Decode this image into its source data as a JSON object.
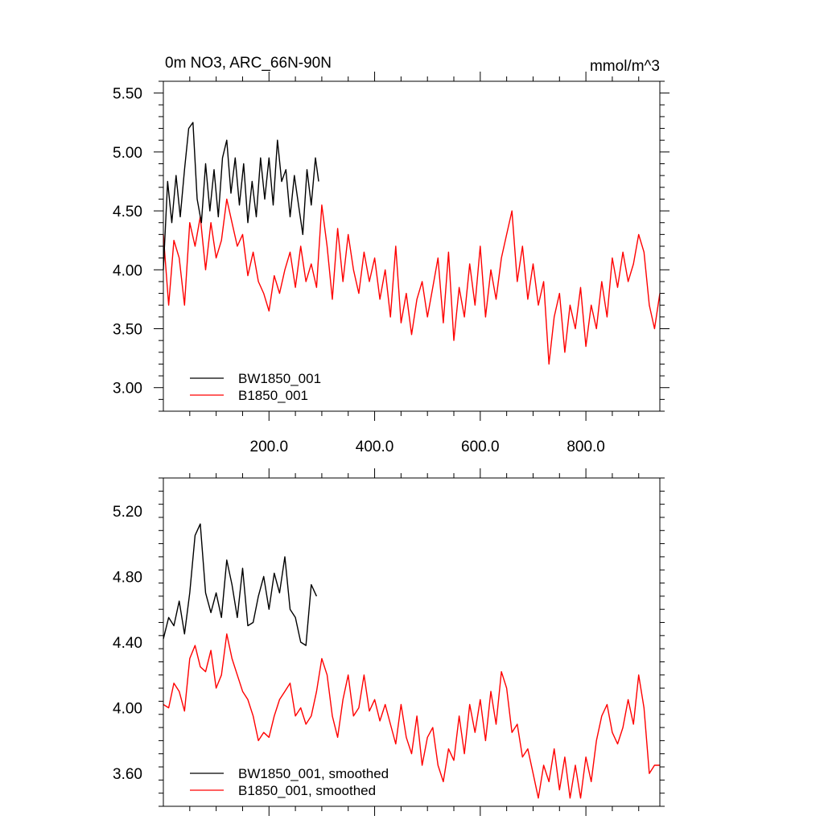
{
  "chart_data": [
    {
      "type": "line",
      "title": "0m NO3, ARC_66N-90N",
      "units": "mmol/m^3",
      "xlim": [
        0,
        940
      ],
      "ylim": [
        2.8,
        5.6
      ],
      "xticks": [
        200,
        400,
        600,
        800
      ],
      "xtick_labels": [
        "200.0",
        "400.0",
        "600.0",
        "800.0"
      ],
      "yticks": [
        3.0,
        3.5,
        4.0,
        4.5,
        5.0,
        5.5
      ],
      "ytick_labels": [
        "3.00",
        "3.50",
        "4.00",
        "4.50",
        "5.00",
        "5.50"
      ],
      "legend_position": "bottom-left",
      "series": [
        {
          "name": "BW1850_001",
          "color": "#000000",
          "x": [
            0,
            8,
            16,
            24,
            32,
            40,
            48,
            56,
            64,
            72,
            80,
            88,
            96,
            104,
            112,
            120,
            128,
            136,
            144,
            152,
            160,
            168,
            176,
            184,
            192,
            200,
            208,
            216,
            224,
            232,
            240,
            248,
            256,
            264,
            272,
            280,
            288,
            294
          ],
          "values": [
            4.0,
            4.75,
            4.4,
            4.8,
            4.45,
            4.85,
            5.2,
            5.25,
            4.6,
            4.4,
            4.9,
            4.5,
            4.85,
            4.45,
            4.95,
            5.1,
            4.65,
            4.95,
            4.55,
            4.9,
            4.4,
            4.75,
            4.45,
            4.95,
            4.6,
            4.95,
            4.55,
            5.1,
            4.75,
            4.85,
            4.45,
            4.8,
            4.55,
            4.3,
            4.85,
            4.55,
            4.95,
            4.75
          ]
        },
        {
          "name": "B1850_001",
          "color": "#ff0000",
          "x": [
            0,
            10,
            20,
            30,
            40,
            50,
            60,
            70,
            80,
            90,
            100,
            110,
            120,
            130,
            140,
            150,
            160,
            170,
            180,
            190,
            200,
            210,
            220,
            230,
            240,
            250,
            260,
            270,
            280,
            290,
            300,
            310,
            320,
            330,
            340,
            350,
            360,
            370,
            380,
            390,
            400,
            410,
            420,
            430,
            440,
            450,
            460,
            470,
            480,
            490,
            500,
            510,
            520,
            530,
            540,
            550,
            560,
            570,
            580,
            590,
            600,
            610,
            620,
            630,
            640,
            650,
            660,
            670,
            680,
            690,
            700,
            710,
            720,
            730,
            740,
            750,
            760,
            770,
            780,
            790,
            800,
            810,
            820,
            830,
            840,
            850,
            860,
            870,
            880,
            890,
            900,
            910,
            920,
            930,
            940
          ],
          "values": [
            4.3,
            3.7,
            4.25,
            4.1,
            3.7,
            4.4,
            4.2,
            4.45,
            4.0,
            4.4,
            4.1,
            4.25,
            4.6,
            4.4,
            4.2,
            4.3,
            3.95,
            4.15,
            3.9,
            3.8,
            3.65,
            3.95,
            3.8,
            4.0,
            4.15,
            3.85,
            4.2,
            3.9,
            4.05,
            3.85,
            4.55,
            4.2,
            3.75,
            4.35,
            3.9,
            4.3,
            4.0,
            3.8,
            4.15,
            3.9,
            4.1,
            3.75,
            4.0,
            3.6,
            4.2,
            3.55,
            3.8,
            3.45,
            3.75,
            3.9,
            3.6,
            3.85,
            4.1,
            3.55,
            4.15,
            3.4,
            3.85,
            3.6,
            4.05,
            3.7,
            4.2,
            3.6,
            4.0,
            3.75,
            4.1,
            4.3,
            4.5,
            3.9,
            4.2,
            3.75,
            4.05,
            3.7,
            3.9,
            3.2,
            3.6,
            3.8,
            3.3,
            3.7,
            3.5,
            3.85,
            3.35,
            3.7,
            3.5,
            3.9,
            3.6,
            4.1,
            3.85,
            4.15,
            3.9,
            4.05,
            4.3,
            4.15,
            3.7,
            3.5,
            3.8
          ]
        }
      ]
    },
    {
      "type": "line",
      "xlim": [
        0,
        940
      ],
      "ylim": [
        3.4,
        5.4
      ],
      "yticks": [
        3.6,
        4.0,
        4.4,
        4.8,
        5.2
      ],
      "ytick_labels": [
        "3.60",
        "4.00",
        "4.40",
        "4.80",
        "5.20"
      ],
      "legend_position": "bottom-left",
      "series": [
        {
          "name": "BW1850_001, smoothed",
          "color": "#000000",
          "x": [
            0,
            10,
            20,
            30,
            40,
            50,
            60,
            70,
            80,
            90,
            100,
            110,
            120,
            130,
            140,
            150,
            160,
            170,
            180,
            190,
            200,
            210,
            220,
            230,
            240,
            250,
            260,
            270,
            280,
            290
          ],
          "values": [
            4.42,
            4.55,
            4.5,
            4.65,
            4.45,
            4.7,
            5.05,
            5.12,
            4.7,
            4.58,
            4.7,
            4.55,
            4.9,
            4.75,
            4.55,
            4.85,
            4.5,
            4.52,
            4.68,
            4.8,
            4.6,
            4.82,
            4.7,
            4.92,
            4.6,
            4.55,
            4.4,
            4.38,
            4.75,
            4.68
          ]
        },
        {
          "name": "B1850_001, smoothed",
          "color": "#ff0000",
          "x": [
            0,
            10,
            20,
            30,
            40,
            50,
            60,
            70,
            80,
            90,
            100,
            110,
            120,
            130,
            140,
            150,
            160,
            170,
            180,
            190,
            200,
            210,
            220,
            230,
            240,
            250,
            260,
            270,
            280,
            290,
            300,
            310,
            320,
            330,
            340,
            350,
            360,
            370,
            380,
            390,
            400,
            410,
            420,
            430,
            440,
            450,
            460,
            470,
            480,
            490,
            500,
            510,
            520,
            530,
            540,
            550,
            560,
            570,
            580,
            590,
            600,
            610,
            620,
            630,
            640,
            650,
            660,
            670,
            680,
            690,
            700,
            710,
            720,
            730,
            740,
            750,
            760,
            770,
            780,
            790,
            800,
            810,
            820,
            830,
            840,
            850,
            860,
            870,
            880,
            890,
            900,
            910,
            920,
            930,
            940
          ],
          "values": [
            4.02,
            4.0,
            4.15,
            4.1,
            3.98,
            4.3,
            4.38,
            4.25,
            4.22,
            4.35,
            4.12,
            4.2,
            4.45,
            4.3,
            4.2,
            4.1,
            4.05,
            3.95,
            3.8,
            3.85,
            3.82,
            3.95,
            4.05,
            4.1,
            4.15,
            3.95,
            4.0,
            3.9,
            3.95,
            4.1,
            4.3,
            4.2,
            3.95,
            3.82,
            4.05,
            4.2,
            3.95,
            4.0,
            4.2,
            3.98,
            4.05,
            3.92,
            4.02,
            3.9,
            3.78,
            4.02,
            3.82,
            3.72,
            3.95,
            3.65,
            3.82,
            3.88,
            3.65,
            3.55,
            3.75,
            3.68,
            3.95,
            3.72,
            4.02,
            3.85,
            4.05,
            3.8,
            4.1,
            3.9,
            4.22,
            4.12,
            3.85,
            3.9,
            3.7,
            3.75,
            3.6,
            3.45,
            3.65,
            3.55,
            3.75,
            3.5,
            3.7,
            3.45,
            3.65,
            3.45,
            3.7,
            3.55,
            3.8,
            3.95,
            4.02,
            3.85,
            3.78,
            3.88,
            4.05,
            3.9,
            4.2,
            4.0,
            3.6,
            3.65,
            3.65
          ]
        }
      ]
    }
  ]
}
